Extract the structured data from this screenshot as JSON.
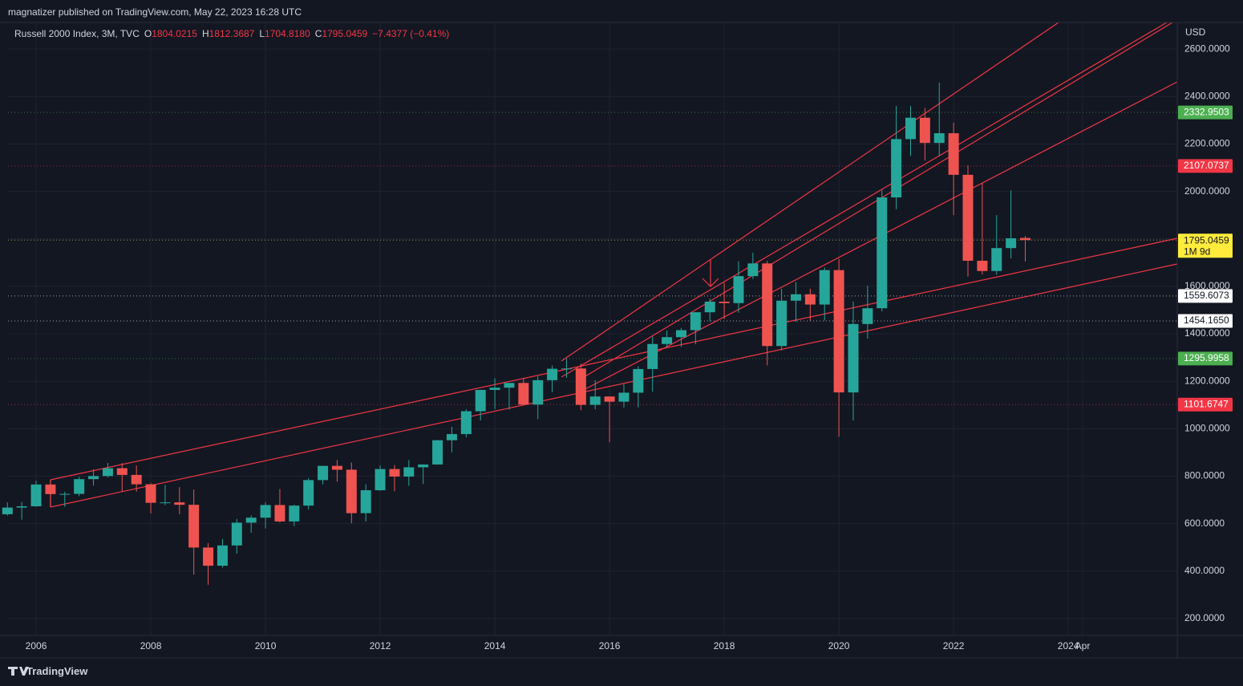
{
  "header": {
    "publisher": "magnatizer published on TradingView.com, May 22, 2023 16:28 UTC"
  },
  "chart_data": {
    "type": "candlestick",
    "title": "Russell 2000 Index, 3M, TVC",
    "legend": [
      {
        "key": "O",
        "value": "1804.0215"
      },
      {
        "key": "H",
        "value": "1812.3687"
      },
      {
        "key": "L",
        "value": "1704.8180"
      },
      {
        "key": "C",
        "value": "1795.0459"
      }
    ],
    "change": "−7.4377 (−0.41%)",
    "x": [
      2005.5,
      2005.75,
      2006,
      2006.25,
      2006.5,
      2006.75,
      2007,
      2007.25,
      2007.5,
      2007.75,
      2008,
      2008.25,
      2008.5,
      2008.75,
      2009,
      2009.25,
      2009.5,
      2009.75,
      2010,
      2010.25,
      2010.5,
      2010.75,
      2011,
      2011.25,
      2011.5,
      2011.75,
      2012,
      2012.25,
      2012.5,
      2012.75,
      2013,
      2013.25,
      2013.5,
      2013.75,
      2014,
      2014.25,
      2014.5,
      2014.75,
      2015,
      2015.25,
      2015.5,
      2015.75,
      2016,
      2016.25,
      2016.5,
      2016.75,
      2017,
      2017.25,
      2017.5,
      2017.75,
      2018,
      2018.25,
      2018.5,
      2018.75,
      2019,
      2019.25,
      2019.5,
      2019.75,
      2020,
      2020.25,
      2020.5,
      2020.75,
      2021,
      2021.25,
      2021.5,
      2021.75,
      2022,
      2022.25,
      2022.5,
      2022.75,
      2023,
      2023.25
    ],
    "open": [
      639.7,
      667.8,
      673.2,
      765.1,
      724.7,
      725.6,
      787.7,
      800.7,
      833.7,
      805.5,
      766,
      688,
      689.7,
      679.6,
      499.5,
      422.8,
      508.3,
      604.3,
      625.4,
      678.6,
      609.5,
      676.1,
      783.7,
      843.6,
      827.4,
      644.2,
      740.9,
      830.3,
      798.5,
      837.5,
      849.4,
      951.5,
      977.5,
      1073.8,
      1163.6,
      1173,
      1193,
      1101.7,
      1204.7,
      1252.8,
      1254,
      1100.7,
      1135.9,
      1114,
      1151.9,
      1251.7,
      1357.1,
      1385.9,
      1415.4,
      1490.9,
      1535.5,
      1529.4,
      1643.1,
      1696.6,
      1348.6,
      1539.7,
      1566.6,
      1523.4,
      1668.5,
      1153.1,
      1441.4,
      1507.7,
      1974.9,
      2220.5,
      2310.6,
      2204.4,
      2245.3,
      2070.1,
      1708,
      1664.7,
      1761.3,
      1804.02
    ],
    "high": [
      690,
      692,
      781,
      784.6,
      735,
      797.7,
      829,
      856,
      855,
      845,
      770,
      763,
      754,
      744,
      518,
      535,
      620,
      635,
      690,
      745.9,
      680,
      792,
      844,
      868.6,
      858,
      766,
      846,
      847,
      868,
      850,
      953,
      1008,
      1082,
      1164,
      1212.8,
      1193,
      1213.6,
      1221,
      1266,
      1296,
      1274,
      1205,
      1137,
      1188,
      1263,
      1388,
      1414.8,
      1425,
      1490.9,
      1548,
      1615.5,
      1706,
      1742,
      1708,
      1590,
      1618,
      1590,
      1679,
      1715,
      1536,
      1603,
      2007,
      2360,
      2360,
      2352,
      2458,
      2290,
      2110,
      2035,
      1900,
      2004,
      1812.37
    ],
    "low": [
      634,
      617,
      672,
      671.9,
      671,
      716,
      760,
      795,
      735,
      735,
      643,
      678,
      640,
      385,
      342.6,
      415,
      474,
      562,
      580,
      605,
      590,
      660,
      765,
      777,
      601.7,
      609,
      738,
      737,
      760,
      767,
      849,
      901,
      964,
      1035,
      1082,
      1080,
      1101,
      1040,
      1154,
      1215,
      1078,
      1082,
      943,
      1089,
      1090,
      1156,
      1345,
      1345,
      1356,
      1452,
      1463,
      1489,
      1631,
      1266.9,
      1330,
      1451,
      1456,
      1456,
      966,
      1035,
      1380,
      1495,
      1925,
      2150,
      2130,
      2150,
      1900,
      1641,
      1650,
      1649,
      1718,
      1704.82
    ],
    "close": [
      667.8,
      673.2,
      765.1,
      724.7,
      725.6,
      787.7,
      800.7,
      833.7,
      805.5,
      766,
      688,
      689.7,
      679.6,
      499.5,
      422.8,
      508.3,
      604.3,
      625.4,
      678.6,
      609.5,
      676.1,
      783.7,
      843.6,
      827.4,
      644.2,
      740.9,
      830.3,
      798.5,
      837.5,
      849.4,
      951.5,
      977.5,
      1073.8,
      1163.6,
      1173,
      1193,
      1101.7,
      1204.7,
      1252.8,
      1254,
      1100.7,
      1135.9,
      1114,
      1151.9,
      1251.7,
      1357.1,
      1385.9,
      1415.4,
      1490.9,
      1535.5,
      1529.4,
      1643.1,
      1696.6,
      1348.6,
      1539.7,
      1566.6,
      1523.4,
      1668.5,
      1153.1,
      1441.4,
      1507.7,
      1974.9,
      2220.5,
      2310.6,
      2204.4,
      2245.3,
      2070.1,
      1708,
      1664.7,
      1761.3,
      1802.5,
      1795.0459
    ],
    "up_color": "#26a69a",
    "down_color": "#ef5350",
    "xlim": [
      2005.51,
      2025.9
    ],
    "xticks": [
      2006,
      2008,
      2010,
      2012,
      2014,
      2016,
      2018,
      2020,
      2022,
      2024,
      {
        "value": 2024.25,
        "label": "Apr"
      }
    ],
    "ylim": [
      129,
      2712
    ],
    "yticks": [
      {
        "value": 200,
        "label": "200.0000"
      },
      {
        "value": 400,
        "label": "400.0000"
      },
      {
        "value": 600,
        "label": "600.0000"
      },
      {
        "value": 800,
        "label": "800.0000"
      },
      {
        "value": 1000,
        "label": "1000.0000"
      },
      {
        "value": 1200,
        "label": "1200.0000"
      },
      {
        "value": 1400,
        "label": "1400.0000"
      },
      {
        "value": 1600,
        "label": "1600.0000"
      },
      {
        "value": 1800,
        "label": "1800.0000"
      },
      {
        "value": 2000,
        "label": "2000.0000"
      },
      {
        "value": 2200,
        "label": "2200.0000"
      },
      {
        "value": 2400,
        "label": "2400.0000"
      },
      {
        "value": 2600,
        "label": "2600.0000"
      }
    ],
    "y_axis_label": "USD",
    "grid": true,
    "price_lines": [
      {
        "value": 2332.9503,
        "label": "2332.9503",
        "color": "#4caf50"
      },
      {
        "value": 2107.0737,
        "label": "2107.0737",
        "color": "#f23645"
      },
      {
        "value": 1795.0459,
        "label": "1795.0459",
        "color": "#ffeb3b",
        "countdown": "1M 9d"
      },
      {
        "value": 1559.6073,
        "label": "1559.6073",
        "color": "#ffffff"
      },
      {
        "value": 1454.165,
        "label": "1454.1650",
        "color": "#ffffff"
      },
      {
        "value": 1295.9958,
        "label": "1295.9958",
        "color": "#4caf50"
      },
      {
        "value": 1101.6747,
        "label": "1101.6747",
        "color": "#f23645"
      }
    ]
  },
  "footer": {
    "brand": "TradingView"
  }
}
